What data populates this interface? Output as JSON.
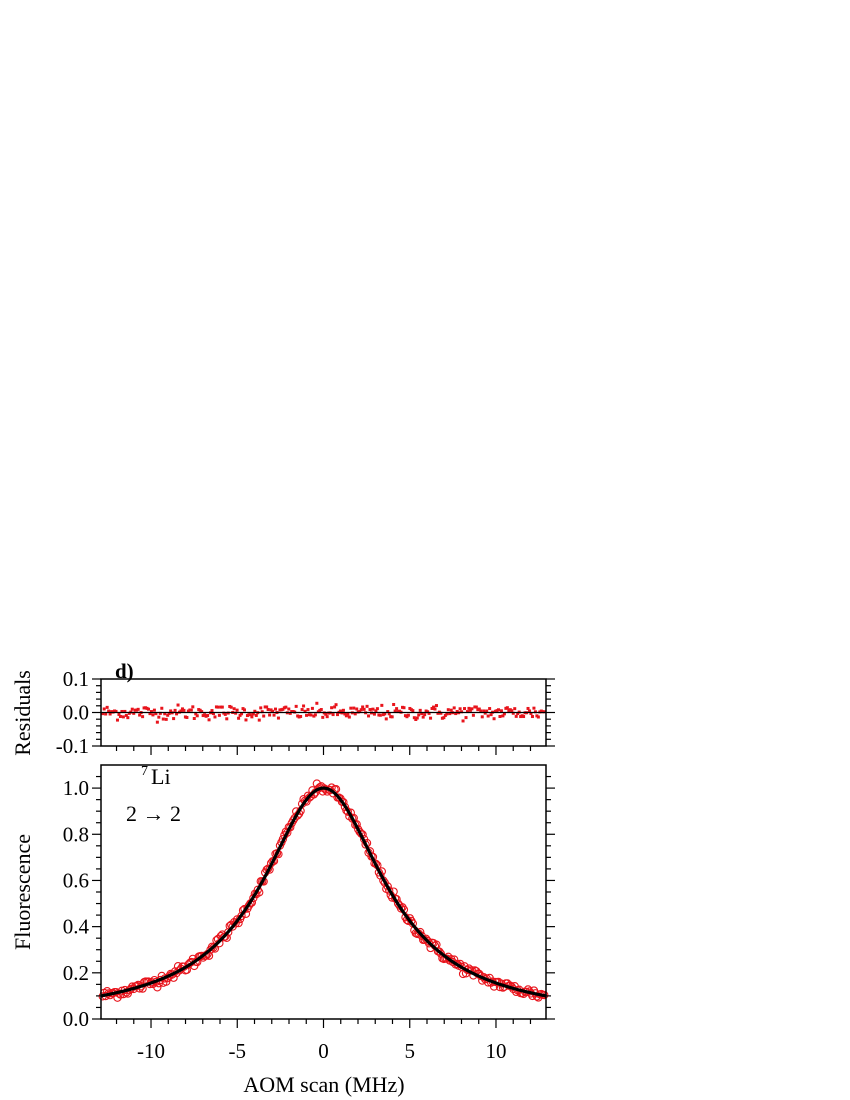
{
  "chart_data": [
    {
      "panel": "residuals",
      "type": "scatter",
      "panel_label": "d)",
      "ylabel": "Residuals",
      "xlim": [
        -12.9,
        12.9
      ],
      "ylim": [
        -0.1,
        0.1
      ],
      "y_ticks": [
        0.1,
        0.0,
        -0.1
      ],
      "y_tick_labels": [
        "0.1",
        "0.0",
        "-0.1"
      ],
      "zero_line": true,
      "marker_color": "#e8141c",
      "noise_amplitude": 0.02,
      "n_points": 300
    },
    {
      "panel": "main",
      "type": "scatter",
      "xlabel": "AOM scan (MHz)",
      "ylabel": "Fluorescence",
      "xlim": [
        -12.9,
        12.9
      ],
      "ylim": [
        0.0,
        1.1
      ],
      "x_ticks": [
        -10,
        -5,
        0,
        5,
        10
      ],
      "x_tick_labels": [
        "-10",
        "-5",
        "0",
        "5",
        "10"
      ],
      "y_ticks": [
        0.0,
        0.2,
        0.4,
        0.6,
        0.8,
        1.0
      ],
      "y_tick_labels": [
        "0.0",
        "0.2",
        "0.4",
        "0.6",
        "0.8",
        "1.0"
      ],
      "annotation": {
        "superscript": "7",
        "species": "Li",
        "transition": "2 → 2"
      },
      "marker_color": "#e8141c",
      "fit_color": "#000000",
      "fit": {
        "model": "lorentzian",
        "center": 0.0,
        "amplitude": 1.0,
        "fwhm": 8.6
      },
      "n_points": 300
    }
  ]
}
